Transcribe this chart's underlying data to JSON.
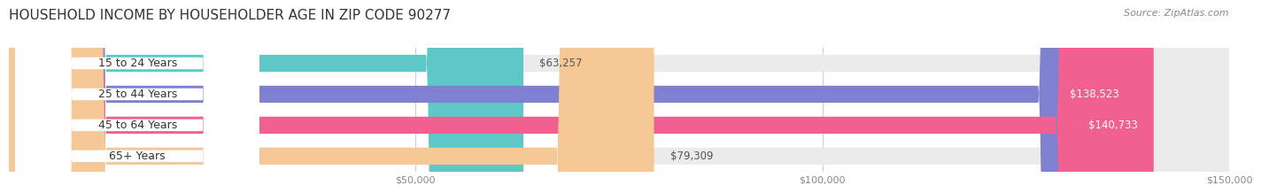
{
  "title": "HOUSEHOLD INCOME BY HOUSEHOLDER AGE IN ZIP CODE 90277",
  "source": "Source: ZipAtlas.com",
  "categories": [
    "15 to 24 Years",
    "25 to 44 Years",
    "45 to 64 Years",
    "65+ Years"
  ],
  "values": [
    63257,
    138523,
    140733,
    79309
  ],
  "bar_colors": [
    "#5ec8c8",
    "#8080d0",
    "#f06090",
    "#f5c896"
  ],
  "bar_bg_color": "#ebebeb",
  "xlim": [
    0,
    150000
  ],
  "xticks": [
    50000,
    100000,
    150000
  ],
  "xtick_labels": [
    "$50,000",
    "$100,000",
    "$150,000"
  ],
  "title_fontsize": 11,
  "source_fontsize": 8,
  "label_fontsize": 9,
  "value_fontsize": 8.5,
  "bar_height": 0.55,
  "background_color": "#ffffff"
}
